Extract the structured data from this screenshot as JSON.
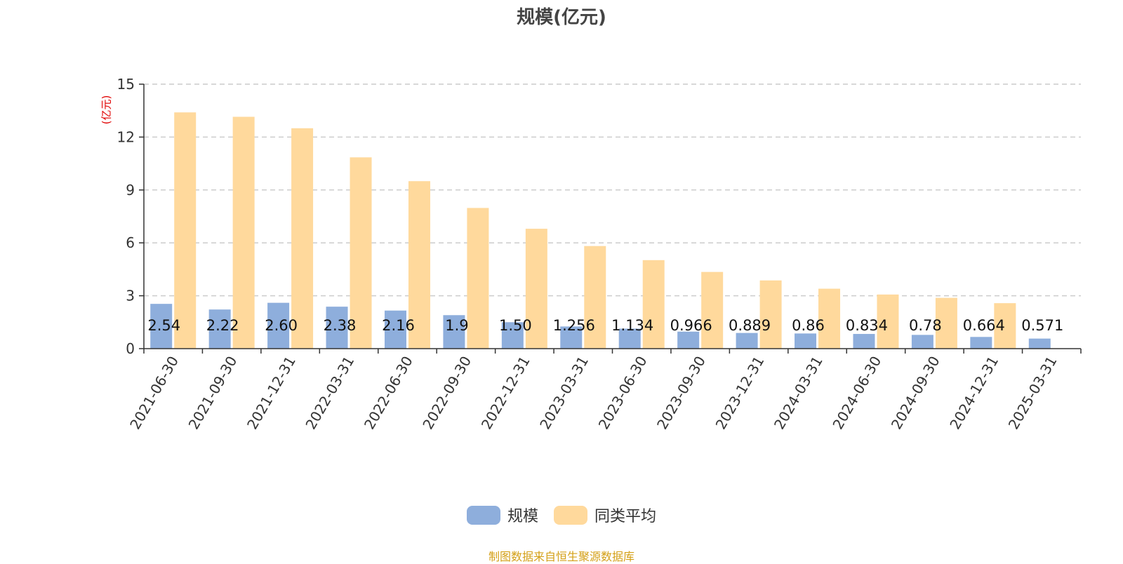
{
  "chart_data": {
    "type": "bar",
    "title": "规模(亿元)",
    "ylabel": "(亿元)",
    "ylim": [
      0,
      15
    ],
    "yticks": [
      0,
      3,
      6,
      9,
      12,
      15
    ],
    "grid": true,
    "legend_position": "bottom-center",
    "categories": [
      "2021-06-30",
      "2021-09-30",
      "2021-12-31",
      "2022-03-31",
      "2022-06-30",
      "2022-09-30",
      "2022-12-31",
      "2023-03-31",
      "2023-06-30",
      "2023-09-30",
      "2023-12-31",
      "2024-03-31",
      "2024-06-30",
      "2024-09-30",
      "2024-12-31",
      "2025-03-31"
    ],
    "series": [
      {
        "name": "规模",
        "color": "#8eaedc",
        "values": [
          2.54,
          2.22,
          2.6,
          2.38,
          2.16,
          1.9,
          1.5,
          1.256,
          1.134,
          0.966,
          0.889,
          0.86,
          0.834,
          0.78,
          0.664,
          0.571
        ],
        "labels": [
          "2.54",
          "2.22",
          "2.60",
          "2.38",
          "2.16",
          "1.9",
          "1.50",
          "1.256",
          "1.134",
          "0.966",
          "0.889",
          "0.86",
          "0.834",
          "0.78",
          "0.664",
          "0.571"
        ]
      },
      {
        "name": "同类平均",
        "color": "#ffd99c",
        "values": [
          13.4,
          13.15,
          12.5,
          10.85,
          9.5,
          7.98,
          6.8,
          5.82,
          5.02,
          4.35,
          3.87,
          3.4,
          3.07,
          2.88,
          2.58,
          null
        ],
        "labels": []
      }
    ]
  },
  "footer": {
    "source": "制图数据来自恒生聚源数据库"
  }
}
